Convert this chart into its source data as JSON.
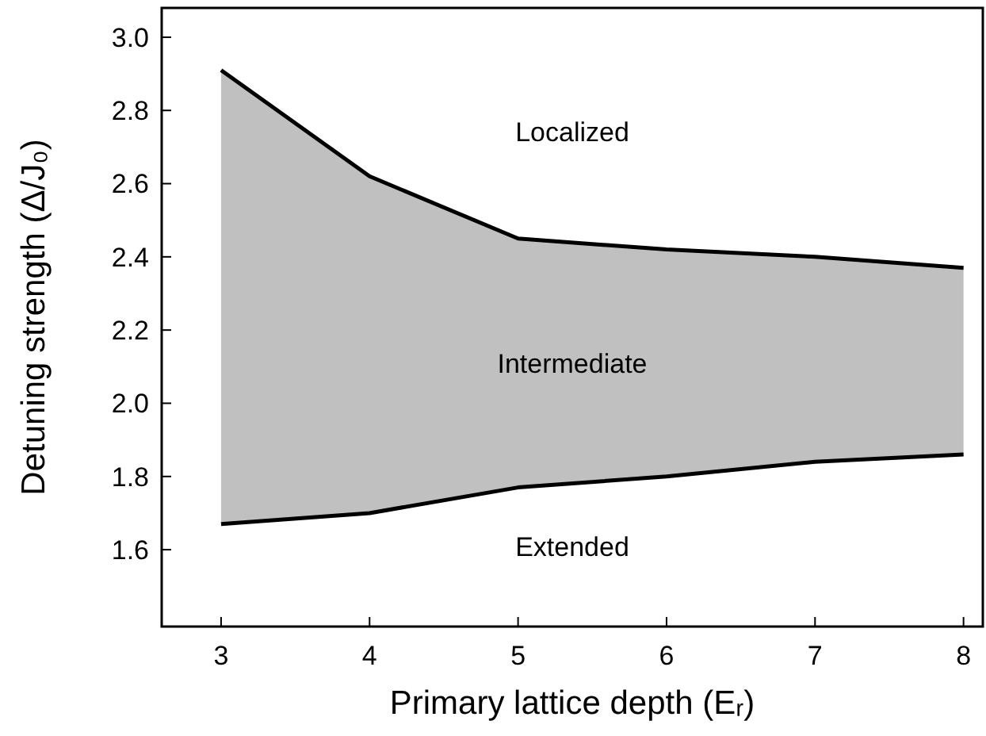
{
  "chart_data": {
    "type": "line",
    "xlabel": "Primary lattice depth (Eᵣ)",
    "ylabel": "Detuning strength (Δ/J₀)",
    "x": [
      3,
      4,
      5,
      6,
      7,
      8
    ],
    "xlim": [
      2.6,
      8.13
    ],
    "xticks": [
      3,
      4,
      5,
      6,
      7,
      8
    ],
    "ylim": [
      1.39,
      3.08
    ],
    "yticks": [
      1.6,
      1.8,
      {
        "value": 2,
        "label": "2.0"
      },
      2.2,
      2.4,
      2.6,
      2.8,
      {
        "value": 3,
        "label": "3.0"
      }
    ],
    "series": [
      {
        "color": "#000000",
        "values": [
          2.91,
          2.62,
          2.45,
          2.42,
          2.4,
          2.37
        ],
        "lower": [
          1.67,
          1.7,
          1.77,
          1.8,
          1.84,
          1.86
        ],
        "upper": [
          2.91,
          2.62,
          2.45,
          2.42,
          2.4,
          2.37
        ]
      },
      {
        "color": "#000000",
        "values": [
          1.67,
          1.7,
          1.77,
          1.8,
          1.84,
          1.86
        ]
      }
    ],
    "annotations": [
      "Localized",
      "Intermediate",
      "Extended"
    ],
    "grid": false,
    "marker": "none",
    "line_style": "solid"
  }
}
